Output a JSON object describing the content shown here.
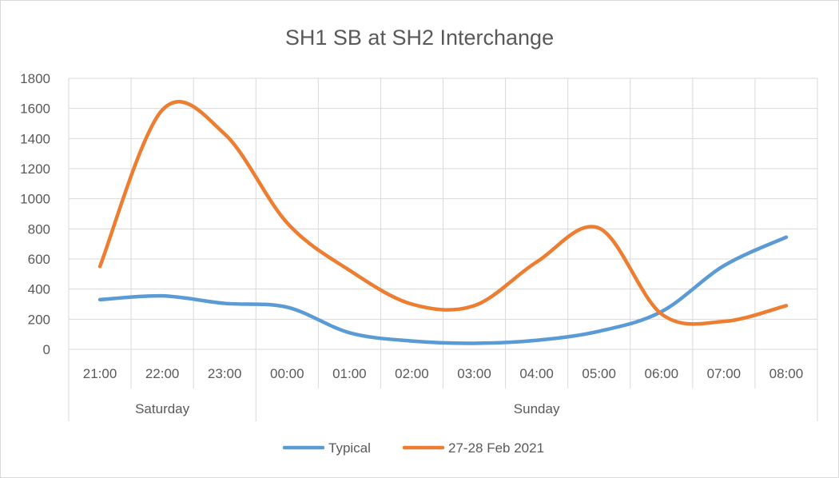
{
  "chart_data": {
    "type": "line",
    "title": "SH1 SB at SH2 Interchange",
    "categories": [
      "21:00",
      "22:00",
      "23:00",
      "00:00",
      "01:00",
      "02:00",
      "03:00",
      "04:00",
      "05:00",
      "06:00",
      "07:00",
      "08:00"
    ],
    "groups": [
      {
        "label": "Saturday",
        "span": [
          0,
          2
        ]
      },
      {
        "label": "Sunday",
        "span": [
          3,
          11
        ]
      }
    ],
    "ylim": [
      0,
      1800
    ],
    "yticks": [
      "0",
      "200",
      "400",
      "600",
      "800",
      "1000",
      "1200",
      "1400",
      "1600",
      "1800"
    ],
    "grid": true,
    "smooth": true,
    "legend_position": "bottom",
    "series": [
      {
        "name": "Typical",
        "color": "#5b9bd5",
        "values": [
          330,
          355,
          305,
          280,
          110,
          55,
          40,
          60,
          120,
          250,
          555,
          745
        ]
      },
      {
        "name": "27-28 Feb 2021",
        "color": "#ed7d31",
        "values": [
          550,
          1590,
          1430,
          840,
          525,
          300,
          290,
          580,
          805,
          235,
          185,
          290
        ]
      }
    ]
  }
}
